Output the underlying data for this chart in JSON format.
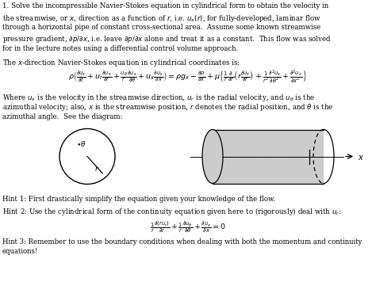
{
  "bg_color": "#ffffff",
  "text_color": "#000000",
  "title_line1": "1. Solve the incompressible Navier-Stokes equation in cylindrical form to obtain the velocity in",
  "title_line2": "the streamwise, or $x$, direction as a function of $r$, i.e. $u_x(r)$, for fully-developed, laminar flow",
  "title_line3": "through a horizontal pipe of constant cross-sectional area.  Assume some known streamwise",
  "title_line4": "pressure gradient, $\\partial p/\\partial x$, i.e. leave $\\partial p/\\partial x$ alone and treat it as a constant.  This flow was solved",
  "title_line5": "for in the lecture notes using a differential control volume approach.",
  "eq_label": "The $x$-direction Navier-Stokes equation in cylindrical coordinates is:",
  "main_eq": "$\\rho\\left(\\frac{\\partial u_x}{\\partial t}+u_r\\frac{\\partial u_x}{\\partial r}+\\frac{u_\\theta}{r}\\frac{\\partial u_x}{\\partial \\theta}+u_x\\frac{\\partial u_x}{\\partial x}\\right)=\\rho g_x-\\frac{\\partial p}{\\partial x}+\\mu\\left\\{\\frac{1}{r}\\frac{\\partial}{\\partial r}\\left(r\\frac{\\partial u_x}{\\partial r}\\right)+\\frac{1}{r^2}\\frac{\\partial^2 u_x}{\\partial \\theta^2}+\\frac{\\partial^2 u_x}{\\partial x^2}\\right\\}$",
  "where_text1": "Where $u_x$ is the velocity in the streamwise direction, $u_r$ is the radial velocity, and $u_\\theta$ is the",
  "where_text2": "azimuthal velocity; also, $x$ is the streamwise position, $r$ denotes the radial position, and $\\theta$ is the",
  "where_text3": "azimuthal angle.  See the diagram:",
  "hint1": "Hint 1: First drastically simplify the equation given your knowledge of the flow.",
  "hint2": "Hint 2: Use the cylindrical form of the continuity equation given here to (rigorously) deal with $u_r$:",
  "continuity_eq": "$\\frac{1}{r}\\frac{\\partial(ru_r)}{\\partial r}+\\frac{1}{r}\\frac{\\partial u_\\theta}{\\partial \\theta}+\\frac{\\partial u_x}{\\partial x}=0$",
  "hint3": "Hint 3: Remember to use the boundary conditions when dealing with both the momentum and continuity",
  "hint3b": "equations!"
}
